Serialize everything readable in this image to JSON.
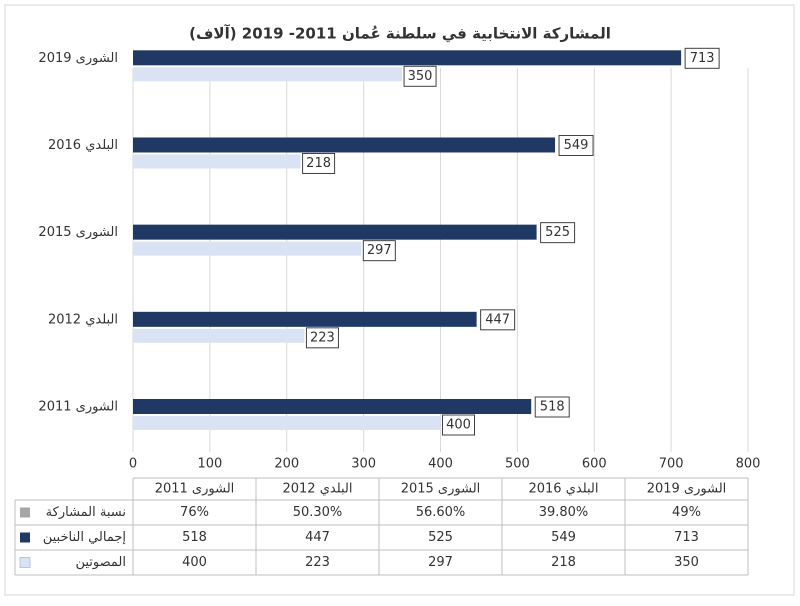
{
  "chart_data": {
    "type": "bar",
    "orientation": "horizontal",
    "title": "المشاركة الانتخابية في سلطنة عُمان 2011- 2019 (آلاف)",
    "categories": [
      "الشورى 2011",
      "البلدي 2012",
      "الشورى 2015",
      "البلدي 2016",
      "الشورى 2019"
    ],
    "series": [
      {
        "name": "نسبة المشاركة",
        "color": "#a6a6a6",
        "values": [
          76,
          50.3,
          56.6,
          39.8,
          49
        ],
        "value_labels": [
          "76%",
          "50.30%",
          "56.60%",
          "39.80%",
          "49%"
        ]
      },
      {
        "name": "إجمالي الناخبين",
        "color": "#1f3864",
        "values": [
          518,
          447,
          525,
          549,
          713
        ]
      },
      {
        "name": "المصوتين",
        "color": "#dae3f3",
        "values": [
          400,
          223,
          297,
          218,
          350
        ]
      }
    ],
    "xlim": [
      0,
      800
    ],
    "xticks": [
      0,
      100,
      200,
      300,
      400,
      500,
      600,
      700,
      800
    ],
    "grid": true
  }
}
